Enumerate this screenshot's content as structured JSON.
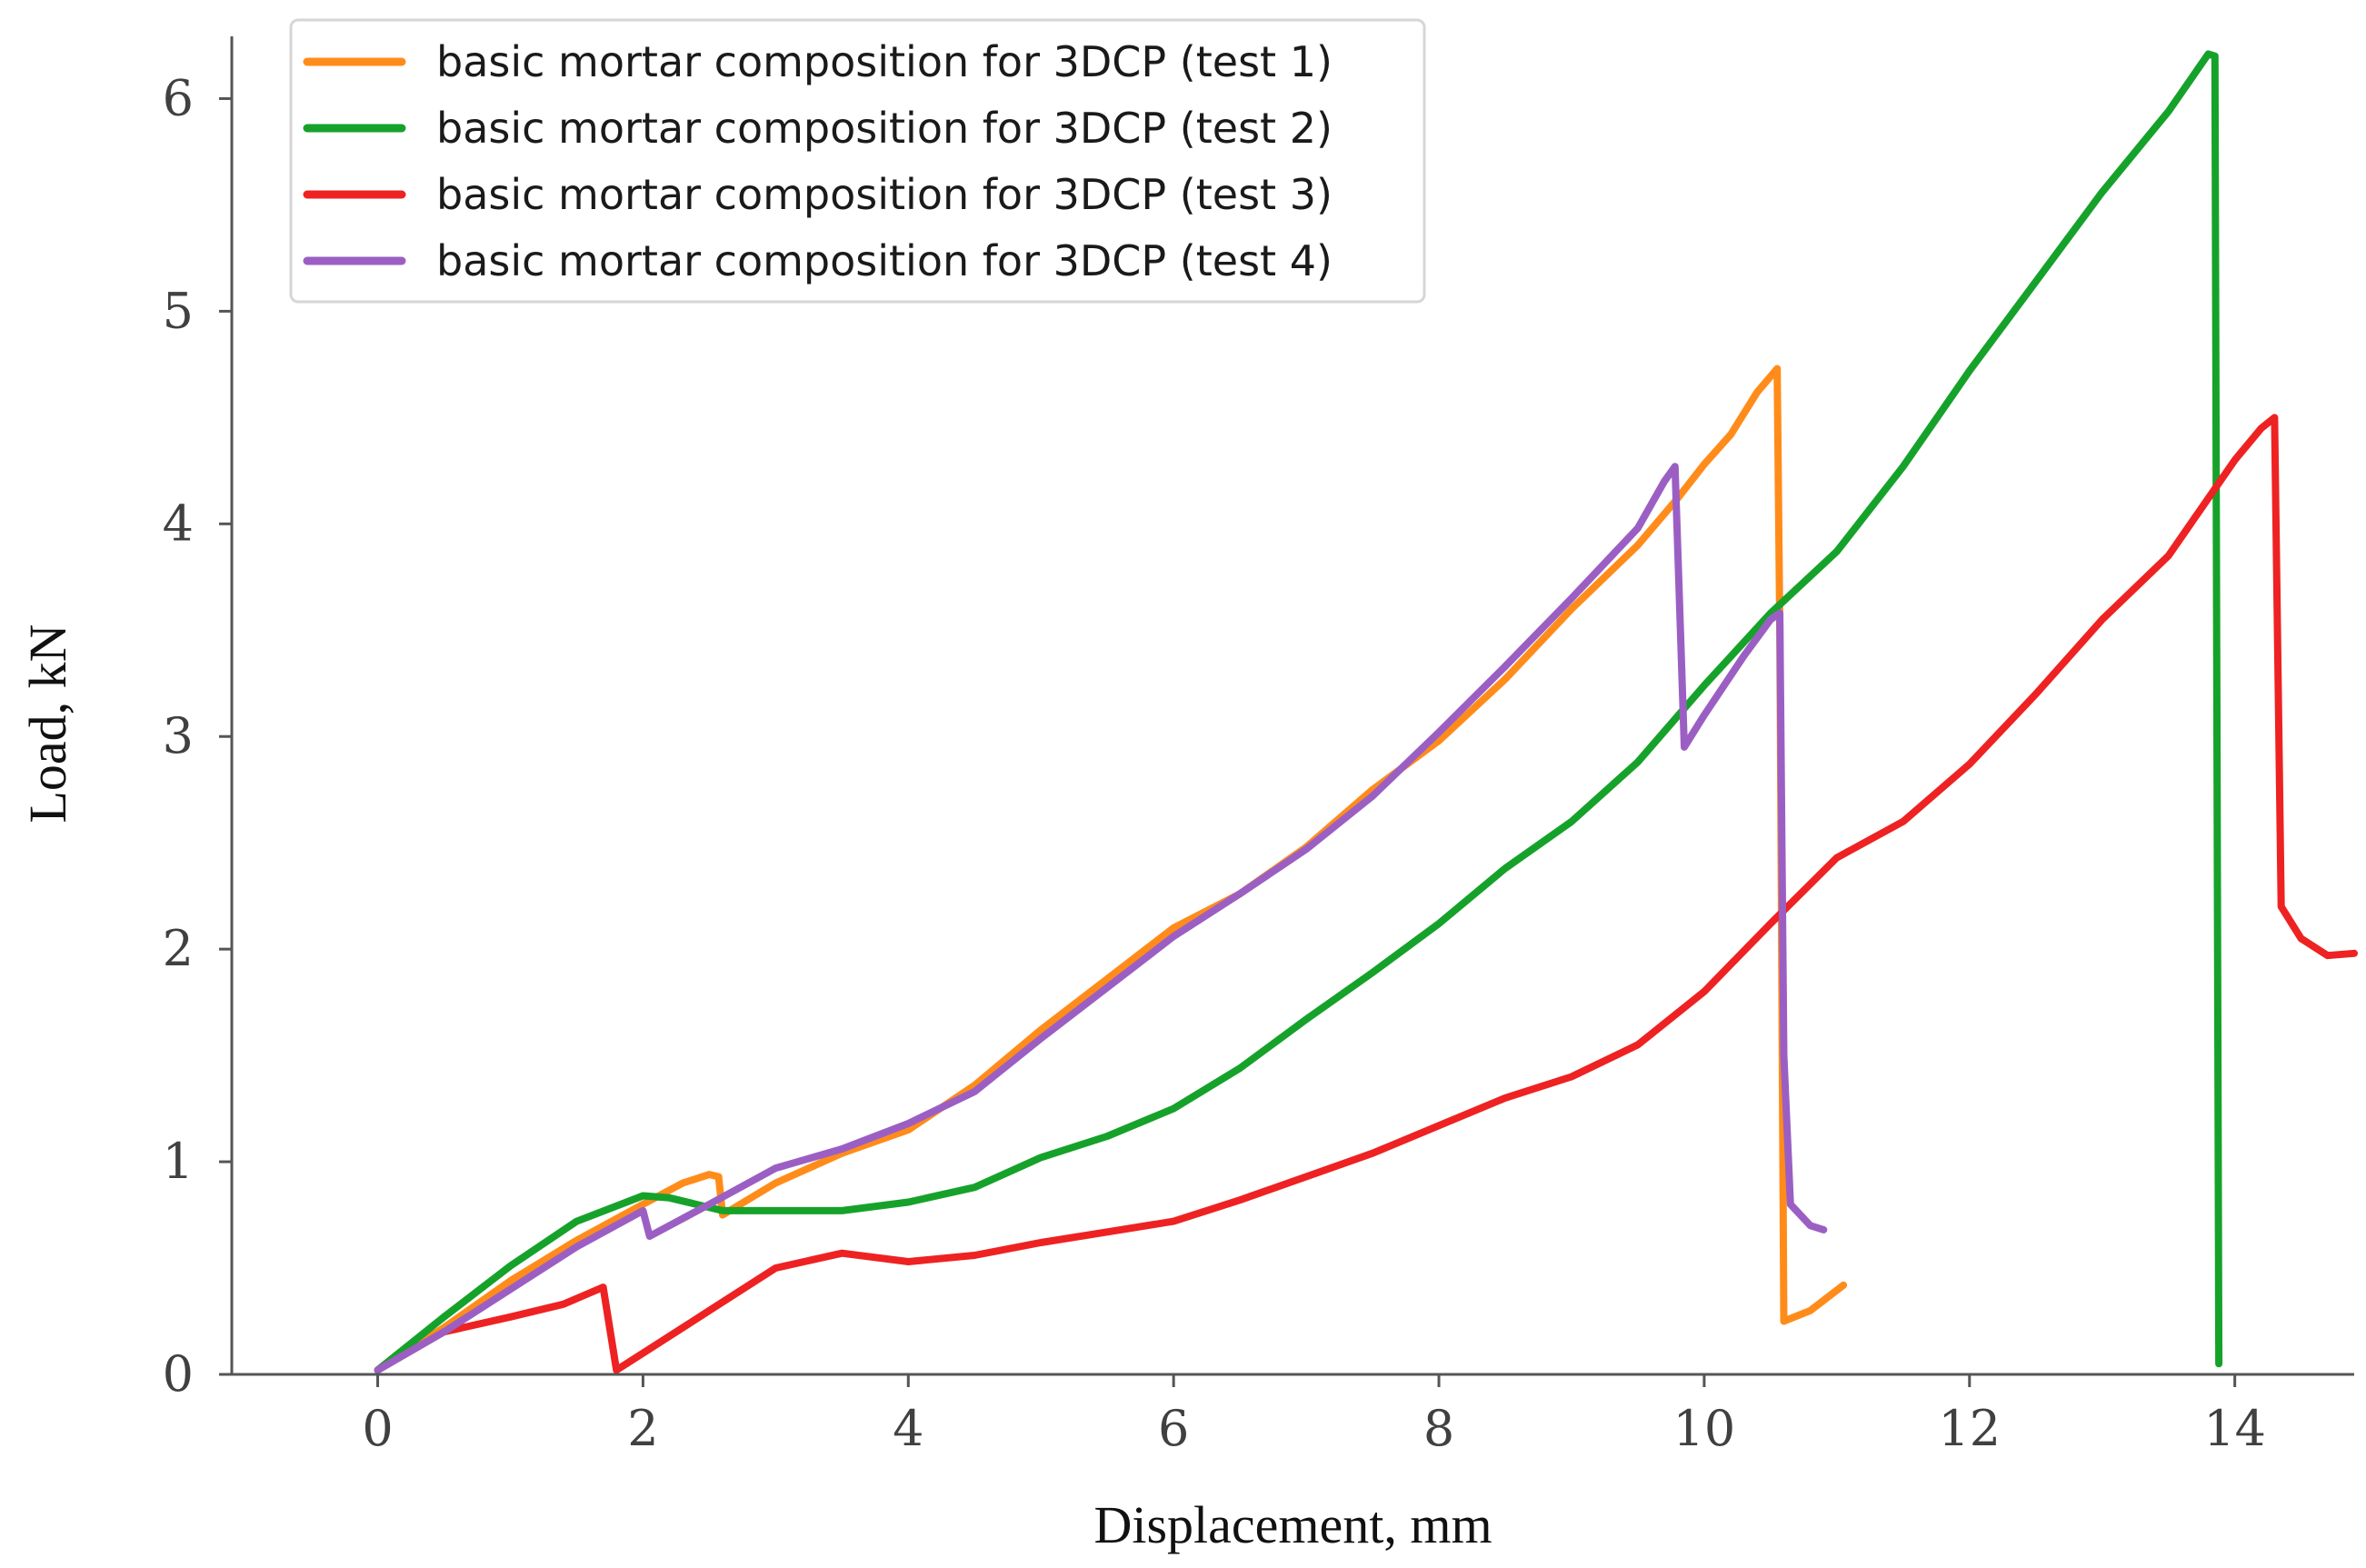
{
  "chart_data": {
    "type": "line",
    "title": "",
    "xlabel": "Displacement, mm",
    "ylabel": "Load, kN",
    "xlim": [
      -1.1,
      14.9
    ],
    "ylim": [
      0,
      6.25
    ],
    "xticks": [
      0,
      2,
      4,
      6,
      8,
      10,
      12,
      14
    ],
    "yticks": [
      0,
      1,
      2,
      3,
      4,
      5,
      6
    ],
    "grid": false,
    "legend_position": "top-left",
    "series": [
      {
        "name": "basic mortar composition for 3DCP (test 1)",
        "color": "#ff8c1a",
        "x": [
          0,
          0.5,
          1.0,
          1.5,
          2.0,
          2.3,
          2.5,
          2.57,
          2.6,
          3.0,
          3.5,
          4.0,
          4.5,
          5.0,
          5.5,
          6.0,
          6.5,
          7.0,
          7.5,
          8.0,
          8.5,
          9.0,
          9.5,
          9.8,
          10.0,
          10.2,
          10.4,
          10.55,
          10.57,
          10.6,
          10.8,
          11.05
        ],
        "y": [
          0.02,
          0.22,
          0.44,
          0.63,
          0.8,
          0.9,
          0.94,
          0.93,
          0.75,
          0.9,
          1.04,
          1.15,
          1.36,
          1.62,
          1.86,
          2.1,
          2.26,
          2.48,
          2.75,
          2.98,
          3.27,
          3.6,
          3.9,
          4.12,
          4.28,
          4.42,
          4.62,
          4.73,
          3.5,
          0.25,
          0.3,
          0.42
        ]
      },
      {
        "name": "basic mortar composition for 3DCP (test 2)",
        "color": "#16a22a",
        "x": [
          0,
          0.5,
          1.0,
          1.5,
          2.0,
          2.2,
          2.6,
          3.0,
          3.5,
          4.0,
          4.5,
          5.0,
          5.5,
          6.0,
          6.5,
          7.0,
          7.5,
          8.0,
          8.5,
          9.0,
          9.5,
          10.0,
          10.5,
          11.0,
          11.5,
          12.0,
          12.5,
          13.0,
          13.5,
          13.8,
          13.85,
          13.88
        ],
        "y": [
          0.02,
          0.27,
          0.51,
          0.72,
          0.84,
          0.83,
          0.77,
          0.77,
          0.77,
          0.81,
          0.88,
          1.02,
          1.12,
          1.25,
          1.44,
          1.67,
          1.89,
          2.12,
          2.38,
          2.6,
          2.88,
          3.24,
          3.58,
          3.87,
          4.27,
          4.72,
          5.14,
          5.56,
          5.94,
          6.21,
          6.2,
          0.05
        ]
      },
      {
        "name": "basic mortar composition for 3DCP (test 3)",
        "color": "#ee2222",
        "x": [
          0,
          0.5,
          1.0,
          1.4,
          1.7,
          1.8,
          2.0,
          2.5,
          3.0,
          3.5,
          4.0,
          4.5,
          5.0,
          5.5,
          6.0,
          6.5,
          7.0,
          7.5,
          8.0,
          8.5,
          9.0,
          9.5,
          10.0,
          10.5,
          11.0,
          11.5,
          12.0,
          12.5,
          13.0,
          13.5,
          14.0,
          14.2,
          14.3,
          14.35,
          14.5,
          14.7,
          14.9
        ],
        "y": [
          0.02,
          0.2,
          0.27,
          0.33,
          0.41,
          0.02,
          0.1,
          0.3,
          0.5,
          0.57,
          0.53,
          0.56,
          0.62,
          0.67,
          0.72,
          0.82,
          0.93,
          1.04,
          1.17,
          1.3,
          1.4,
          1.55,
          1.8,
          2.12,
          2.43,
          2.6,
          2.87,
          3.2,
          3.55,
          3.85,
          4.3,
          4.45,
          4.5,
          2.2,
          2.05,
          1.97,
          1.98
        ]
      },
      {
        "name": "basic mortar composition for 3DCP (test 4)",
        "color": "#9b5fc4",
        "x": [
          0,
          0.5,
          1.0,
          1.5,
          2.0,
          2.05,
          2.5,
          3.0,
          3.5,
          4.0,
          4.5,
          5.0,
          5.5,
          6.0,
          6.5,
          7.0,
          7.5,
          8.0,
          8.5,
          9.0,
          9.5,
          9.7,
          9.78,
          9.85,
          10.0,
          10.3,
          10.5,
          10.57,
          10.6,
          10.65,
          10.8,
          10.9
        ],
        "y": [
          0.02,
          0.2,
          0.4,
          0.6,
          0.77,
          0.65,
          0.8,
          0.97,
          1.06,
          1.18,
          1.33,
          1.58,
          1.82,
          2.06,
          2.26,
          2.47,
          2.72,
          3.02,
          3.33,
          3.65,
          3.98,
          4.2,
          4.27,
          2.95,
          3.1,
          3.38,
          3.55,
          3.58,
          1.5,
          0.8,
          0.7,
          0.68
        ]
      }
    ]
  }
}
